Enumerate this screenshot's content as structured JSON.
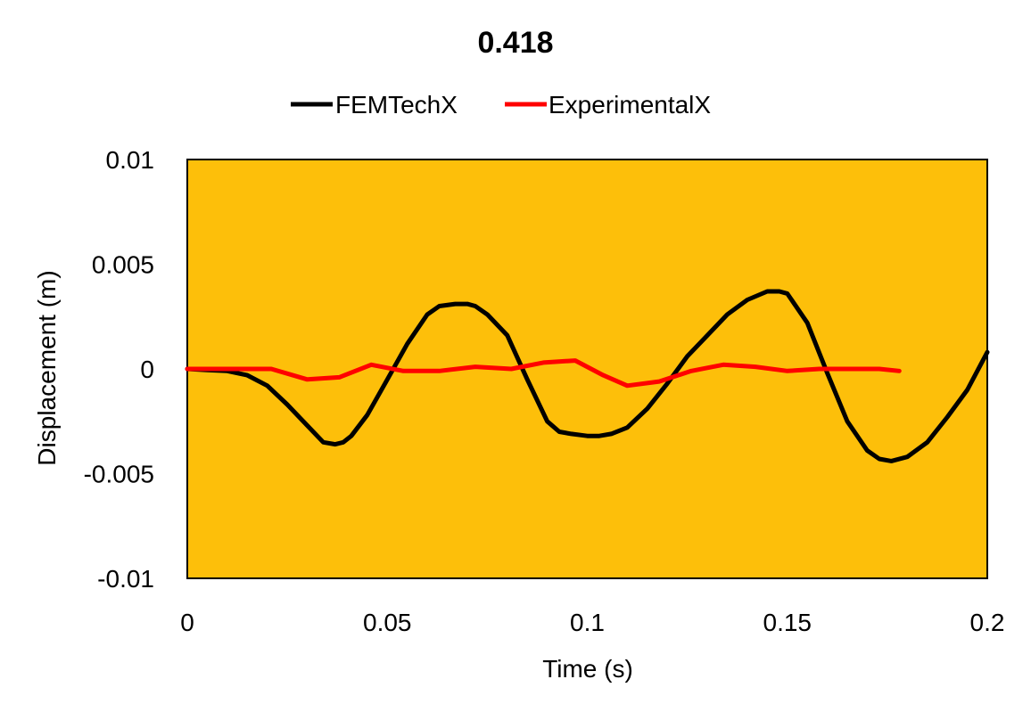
{
  "chart_data": {
    "type": "line",
    "title": "0.418",
    "xlabel": "Time (s)",
    "ylabel": "Displacement (m)",
    "xlim": [
      0,
      0.2
    ],
    "ylim": [
      -0.01,
      0.01
    ],
    "x_ticks": [
      "0",
      "0.05",
      "0.1",
      "0.15",
      "0.2"
    ],
    "y_ticks": [
      "0.01",
      "0.005",
      "0",
      "-0.005",
      "-0.01"
    ],
    "grid": false,
    "legend_position": "top",
    "plot_background": "#FDBF0A",
    "series": [
      {
        "name": "FEMTechX",
        "color": "#000000",
        "x": [
          0,
          0.005,
          0.01,
          0.015,
          0.02,
          0.025,
          0.03,
          0.034,
          0.037,
          0.039,
          0.041,
          0.045,
          0.05,
          0.055,
          0.06,
          0.063,
          0.067,
          0.07,
          0.072,
          0.075,
          0.08,
          0.085,
          0.09,
          0.093,
          0.096,
          0.1,
          0.103,
          0.106,
          0.11,
          0.115,
          0.12,
          0.125,
          0.13,
          0.135,
          0.14,
          0.145,
          0.148,
          0.15,
          0.155,
          0.16,
          0.165,
          0.17,
          0.173,
          0.176,
          0.18,
          0.185,
          0.19,
          0.195,
          0.2
        ],
        "y": [
          0,
          -5e-05,
          -0.0001,
          -0.0003,
          -0.0008,
          -0.0017,
          -0.0027,
          -0.0035,
          -0.0036,
          -0.0035,
          -0.0032,
          -0.0022,
          -0.0005,
          0.0012,
          0.0026,
          0.003,
          0.0031,
          0.0031,
          0.003,
          0.0026,
          0.0016,
          -0.0005,
          -0.0025,
          -0.003,
          -0.0031,
          -0.0032,
          -0.0032,
          -0.0031,
          -0.0028,
          -0.0019,
          -0.0007,
          0.0006,
          0.0016,
          0.0026,
          0.0033,
          0.0037,
          0.0037,
          0.0036,
          0.0022,
          -0.0002,
          -0.0025,
          -0.0039,
          -0.0043,
          -0.0044,
          -0.0042,
          -0.0035,
          -0.0023,
          -0.001,
          0.0008
        ]
      },
      {
        "name": "ExperimentalX",
        "color": "#FF0000",
        "x": [
          0,
          0.01,
          0.021,
          0.03,
          0.038,
          0.046,
          0.054,
          0.063,
          0.072,
          0.081,
          0.089,
          0.097,
          0.104,
          0.11,
          0.118,
          0.126,
          0.134,
          0.142,
          0.15,
          0.158,
          0.166,
          0.173,
          0.178
        ],
        "y": [
          0,
          0,
          0,
          -0.0005,
          -0.0004,
          0.0002,
          -0.0001,
          -0.0001,
          0.0001,
          0.0,
          0.0003,
          0.0004,
          -0.0003,
          -0.0008,
          -0.0006,
          -0.0001,
          0.0002,
          0.0001,
          -0.0001,
          0.0,
          0.0,
          0.0,
          -0.0001
        ]
      }
    ]
  }
}
